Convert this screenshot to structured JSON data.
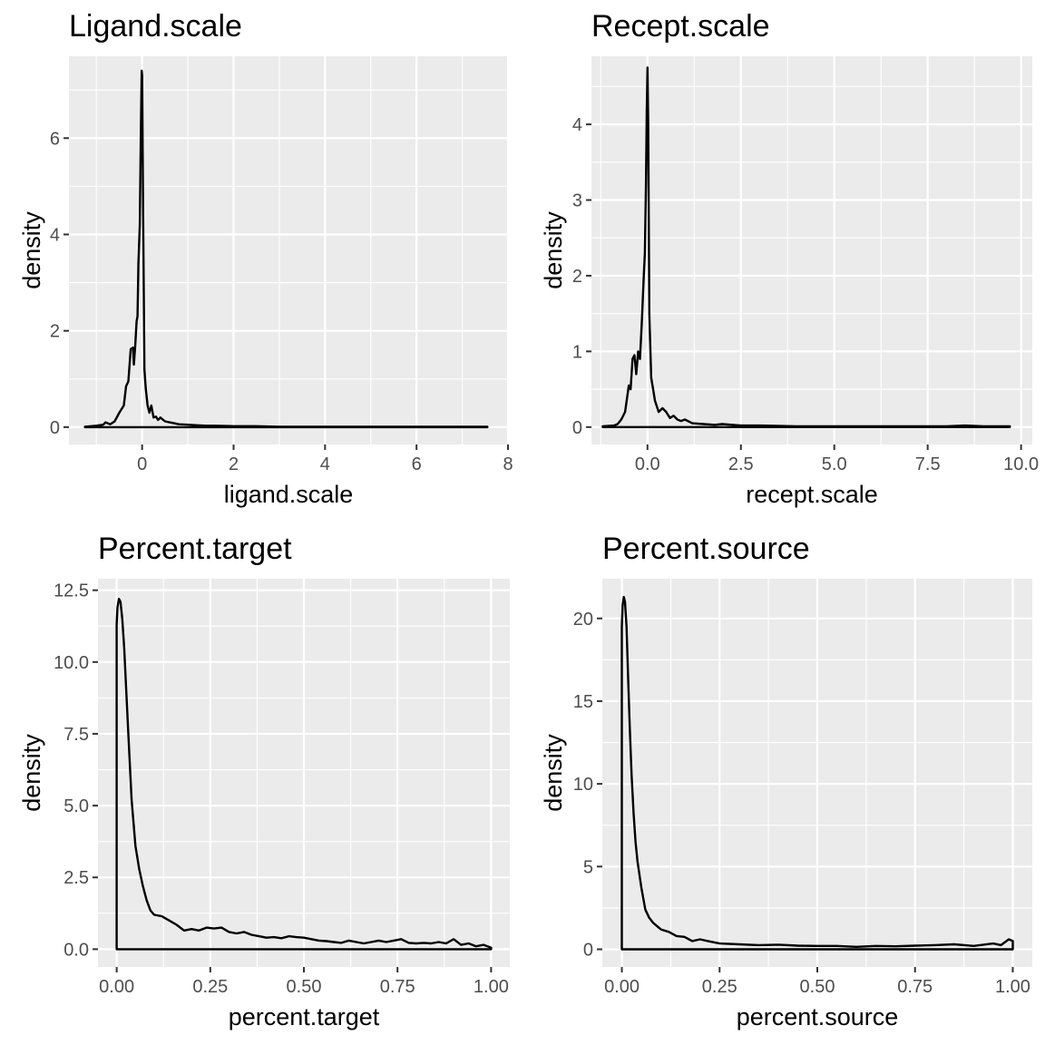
{
  "chart_data": [
    {
      "type": "line",
      "title": "Ligand.scale",
      "xlabel": "ligand.scale",
      "ylabel": "density",
      "xlim": [
        -1.6,
        8.0
      ],
      "ylim": [
        -0.36,
        7.7
      ],
      "xticks": [
        0,
        2,
        4,
        6,
        8
      ],
      "xtick_labels": [
        "0",
        "2",
        "4",
        "6",
        "8"
      ],
      "yticks": [
        0,
        2,
        4,
        6
      ],
      "ytick_labels": [
        "0",
        "2",
        "4",
        "6"
      ],
      "grid": true,
      "series": [
        {
          "x": [
            -1.25,
            -1.0,
            -0.85,
            -0.8,
            -0.7,
            -0.6,
            -0.5,
            -0.4,
            -0.35,
            -0.3,
            -0.25,
            -0.2,
            -0.18,
            -0.15,
            -0.12,
            -0.1,
            -0.08,
            -0.05,
            -0.03,
            -0.01,
            0.0,
            0.02,
            0.05,
            0.08,
            0.12,
            0.16,
            0.2,
            0.25,
            0.3,
            0.35,
            0.4,
            0.5,
            0.6,
            0.7,
            0.8,
            1.0,
            1.2,
            1.4,
            1.6,
            2.0,
            2.5,
            3.0,
            3.5,
            4.0,
            5.0,
            6.0,
            7.0,
            7.55
          ],
          "y": [
            0.01,
            0.03,
            0.05,
            0.1,
            0.06,
            0.12,
            0.3,
            0.45,
            0.85,
            0.95,
            1.62,
            1.65,
            1.3,
            1.7,
            2.2,
            2.3,
            3.4,
            4.2,
            6.0,
            7.4,
            7.3,
            4.6,
            1.2,
            0.8,
            0.45,
            0.3,
            0.45,
            0.2,
            0.22,
            0.15,
            0.2,
            0.12,
            0.1,
            0.08,
            0.06,
            0.05,
            0.04,
            0.03,
            0.03,
            0.02,
            0.02,
            0.01,
            0.01,
            0.01,
            0.01,
            0.01,
            0.01,
            0.01
          ]
        }
      ]
    },
    {
      "type": "line",
      "title": "Recept.scale",
      "xlabel": "recept.scale",
      "ylabel": "density",
      "xlim": [
        -1.5,
        10.3
      ],
      "ylim": [
        -0.23,
        4.9
      ],
      "xticks": [
        0.0,
        2.5,
        5.0,
        7.5,
        10.0
      ],
      "xtick_labels": [
        "0.0",
        "2.5",
        "5.0",
        "7.5",
        "10.0"
      ],
      "yticks": [
        0,
        1,
        2,
        3,
        4
      ],
      "ytick_labels": [
        "0",
        "1",
        "2",
        "3",
        "4"
      ],
      "grid": true,
      "series": [
        {
          "x": [
            -1.2,
            -0.9,
            -0.8,
            -0.7,
            -0.6,
            -0.5,
            -0.45,
            -0.4,
            -0.35,
            -0.3,
            -0.25,
            -0.2,
            -0.15,
            -0.1,
            -0.07,
            -0.04,
            -0.02,
            0.0,
            0.02,
            0.05,
            0.1,
            0.15,
            0.2,
            0.3,
            0.4,
            0.5,
            0.6,
            0.7,
            0.8,
            0.9,
            1.0,
            1.2,
            1.5,
            1.8,
            2.0,
            2.5,
            3.0,
            4.0,
            5.0,
            6.0,
            7.0,
            8.0,
            8.5,
            9.0,
            9.7
          ],
          "y": [
            0.01,
            0.02,
            0.04,
            0.1,
            0.2,
            0.55,
            0.5,
            0.9,
            0.95,
            0.7,
            1.0,
            0.9,
            1.4,
            2.0,
            2.3,
            3.2,
            4.2,
            4.75,
            4.0,
            1.5,
            0.65,
            0.5,
            0.35,
            0.2,
            0.25,
            0.2,
            0.12,
            0.15,
            0.1,
            0.08,
            0.1,
            0.05,
            0.04,
            0.03,
            0.04,
            0.02,
            0.02,
            0.01,
            0.01,
            0.01,
            0.01,
            0.01,
            0.02,
            0.01,
            0.01
          ]
        }
      ]
    },
    {
      "type": "area",
      "title": "Percent.target",
      "xlabel": "percent.target",
      "ylabel": "density",
      "xlim": [
        -0.05,
        1.05
      ],
      "ylim": [
        -0.62,
        12.9
      ],
      "xticks": [
        0.0,
        0.25,
        0.5,
        0.75,
        1.0
      ],
      "xtick_labels": [
        "0.00",
        "0.25",
        "0.50",
        "0.75",
        "1.00"
      ],
      "yticks": [
        0.0,
        2.5,
        5.0,
        7.5,
        10.0,
        12.5
      ],
      "ytick_labels": [
        "0.0",
        "2.5",
        "5.0",
        "7.5",
        "10.0",
        "12.5"
      ],
      "grid": true,
      "series": [
        {
          "x": [
            0.0,
            0.002,
            0.006,
            0.01,
            0.015,
            0.02,
            0.03,
            0.04,
            0.05,
            0.06,
            0.07,
            0.08,
            0.09,
            0.1,
            0.12,
            0.14,
            0.16,
            0.18,
            0.2,
            0.22,
            0.24,
            0.26,
            0.28,
            0.3,
            0.32,
            0.34,
            0.36,
            0.38,
            0.4,
            0.42,
            0.44,
            0.46,
            0.48,
            0.5,
            0.52,
            0.54,
            0.56,
            0.58,
            0.6,
            0.62,
            0.64,
            0.66,
            0.68,
            0.7,
            0.72,
            0.74,
            0.76,
            0.78,
            0.8,
            0.82,
            0.84,
            0.86,
            0.88,
            0.9,
            0.92,
            0.94,
            0.96,
            0.98,
            1.0
          ],
          "y": [
            11.3,
            11.9,
            12.2,
            12.1,
            11.5,
            10.5,
            7.8,
            5.2,
            3.6,
            2.8,
            2.2,
            1.7,
            1.35,
            1.2,
            1.15,
            1.0,
            0.85,
            0.65,
            0.7,
            0.65,
            0.75,
            0.72,
            0.75,
            0.6,
            0.55,
            0.6,
            0.5,
            0.45,
            0.4,
            0.42,
            0.38,
            0.45,
            0.42,
            0.4,
            0.35,
            0.3,
            0.28,
            0.25,
            0.22,
            0.3,
            0.25,
            0.2,
            0.25,
            0.3,
            0.25,
            0.3,
            0.35,
            0.22,
            0.2,
            0.22,
            0.2,
            0.25,
            0.2,
            0.35,
            0.15,
            0.2,
            0.1,
            0.15,
            0.05
          ]
        }
      ]
    },
    {
      "type": "area",
      "title": "Percent.source",
      "xlabel": "percent.source",
      "ylabel": "density",
      "xlim": [
        -0.05,
        1.05
      ],
      "ylim": [
        -1.07,
        22.4
      ],
      "xticks": [
        0.0,
        0.25,
        0.5,
        0.75,
        1.0
      ],
      "xtick_labels": [
        "0.00",
        "0.25",
        "0.50",
        "0.75",
        "1.00"
      ],
      "yticks": [
        0,
        5,
        10,
        15,
        20
      ],
      "ytick_labels": [
        "0",
        "5",
        "10",
        "15",
        "20"
      ],
      "grid": true,
      "series": [
        {
          "x": [
            0.0,
            0.002,
            0.005,
            0.008,
            0.012,
            0.016,
            0.02,
            0.025,
            0.03,
            0.035,
            0.04,
            0.05,
            0.06,
            0.07,
            0.08,
            0.1,
            0.12,
            0.14,
            0.16,
            0.18,
            0.2,
            0.22,
            0.25,
            0.3,
            0.35,
            0.4,
            0.45,
            0.5,
            0.55,
            0.6,
            0.65,
            0.7,
            0.75,
            0.8,
            0.85,
            0.9,
            0.95,
            0.97,
            0.99,
            1.0
          ],
          "y": [
            19.5,
            20.8,
            21.3,
            21.0,
            19.5,
            16.5,
            13.5,
            10.5,
            8.2,
            6.5,
            5.3,
            3.7,
            2.4,
            1.9,
            1.6,
            1.2,
            1.05,
            0.8,
            0.75,
            0.5,
            0.6,
            0.5,
            0.35,
            0.3,
            0.25,
            0.28,
            0.22,
            0.2,
            0.2,
            0.15,
            0.2,
            0.18,
            0.22,
            0.25,
            0.3,
            0.2,
            0.35,
            0.25,
            0.6,
            0.5
          ]
        }
      ]
    }
  ]
}
